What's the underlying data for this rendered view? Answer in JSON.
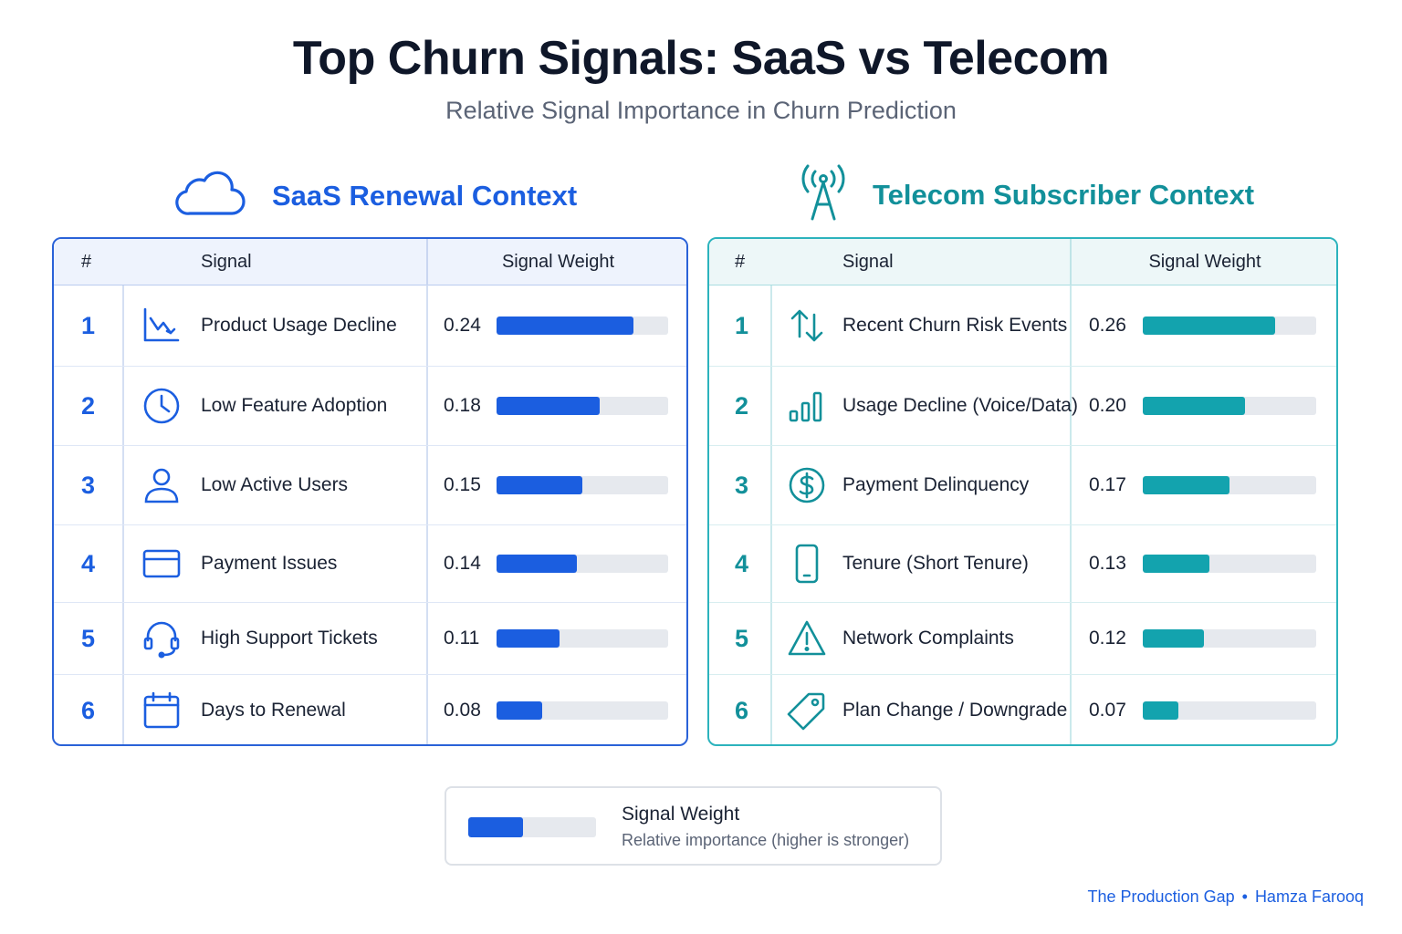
{
  "title": "Top Churn Signals: SaaS vs Telecom",
  "subtitle": "Relative Signal Importance in Churn Prediction",
  "colors": {
    "saas": "#1b5ee0",
    "telecom": "#13a3ae",
    "track": "#e6e9ee"
  },
  "saas": {
    "heading": "SaaS Renewal Context",
    "heading_icon": "cloud-icon",
    "columns": {
      "num": "#",
      "signal": "Signal",
      "weight": "Signal Weight"
    },
    "rows": [
      {
        "num": "1",
        "icon": "chart-decline-icon",
        "label": "Product Usage Decline",
        "value": "0.24"
      },
      {
        "num": "2",
        "icon": "clock-icon",
        "label": "Low Feature Adoption",
        "value": "0.18"
      },
      {
        "num": "3",
        "icon": "user-icon",
        "label": "Low Active Users",
        "value": "0.15"
      },
      {
        "num": "4",
        "icon": "credit-card-icon",
        "label": "Payment Issues",
        "value": "0.14"
      },
      {
        "num": "5",
        "icon": "headset-icon",
        "label": "High Support Tickets",
        "value": "0.11"
      },
      {
        "num": "6",
        "icon": "calendar-icon",
        "label": "Days to Renewal",
        "value": "0.08"
      }
    ]
  },
  "telecom": {
    "heading": "Telecom Subscriber Context",
    "heading_icon": "antenna-tower-icon",
    "columns": {
      "num": "#",
      "signal": "Signal",
      "weight": "Signal Weight"
    },
    "rows": [
      {
        "num": "1",
        "icon": "arrows-up-down-icon",
        "label": "Recent Churn Risk Events",
        "value": "0.26"
      },
      {
        "num": "2",
        "icon": "signal-bars-icon",
        "label": "Usage Decline (Voice/Data)",
        "value": "0.20"
      },
      {
        "num": "3",
        "icon": "dollar-circle-icon",
        "label": "Payment Delinquency",
        "value": "0.17"
      },
      {
        "num": "4",
        "icon": "mobile-phone-icon",
        "label": "Tenure (Short Tenure)",
        "value": "0.13"
      },
      {
        "num": "5",
        "icon": "warning-triangle-icon",
        "label": "Network Complaints",
        "value": "0.12"
      },
      {
        "num": "6",
        "icon": "tag-icon",
        "label": "Plan Change / Downgrade",
        "value": "0.07"
      }
    ]
  },
  "legend": {
    "title": "Signal Weight",
    "description": "Relative importance (higher is stronger)",
    "sample_fill": 0.43
  },
  "credit": {
    "left": "The Production Gap",
    "separator": "•",
    "right": "Hamza Farooq"
  },
  "chart_data": [
    {
      "type": "bar",
      "title": "SaaS Renewal Context",
      "categories": [
        "Product Usage Decline",
        "Low Feature Adoption",
        "Low Active Users",
        "Payment Issues",
        "High Support Tickets",
        "Days to Renewal"
      ],
      "values": [
        0.24,
        0.18,
        0.15,
        0.14,
        0.11,
        0.08
      ],
      "ylabel": "Signal Weight",
      "ylim": [
        0,
        0.3
      ]
    },
    {
      "type": "bar",
      "title": "Telecom Subscriber Context",
      "categories": [
        "Recent Churn Risk Events",
        "Usage Decline (Voice/Data)",
        "Payment Delinquency",
        "Tenure (Short Tenure)",
        "Network Complaints",
        "Plan Change / Downgrade"
      ],
      "values": [
        0.26,
        0.2,
        0.17,
        0.13,
        0.12,
        0.07
      ],
      "ylabel": "Signal Weight",
      "ylim": [
        0,
        0.34
      ]
    }
  ]
}
